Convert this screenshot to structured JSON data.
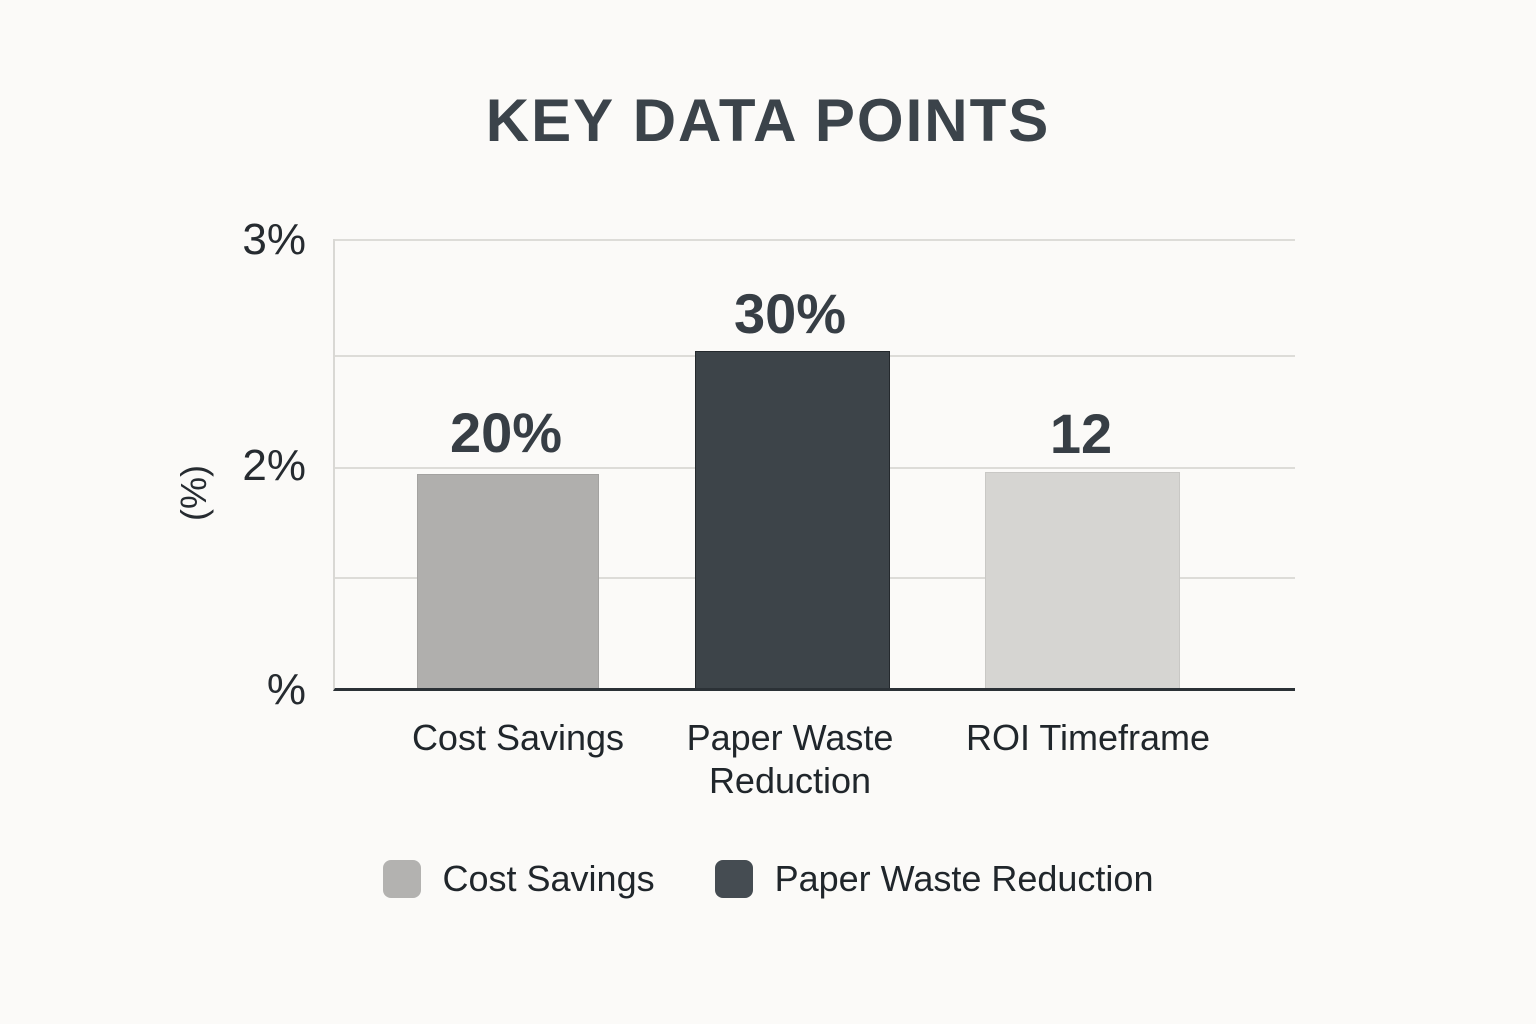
{
  "title": "KEY DATA POINTS",
  "colors": {
    "background": "#fbfaf8",
    "title_text": "#3b434a",
    "axis_line": "#2b3136",
    "gridline": "#dddcd8",
    "bar_cost_savings": "#b0afad",
    "bar_paper_waste": "#3d4449",
    "bar_roi": "#d6d5d2"
  },
  "chart_data": {
    "type": "bar",
    "title": "KEY DATA POINTS",
    "categories": [
      "Cost Savings",
      "Paper Waste Reduction",
      "ROI Timeframe"
    ],
    "values": [
      20,
      30,
      12
    ],
    "value_labels": [
      "20%",
      "30%",
      "12"
    ],
    "xlabel": "",
    "ylabel": "(%)",
    "ytick_labels": [
      "3%",
      "2%",
      "%"
    ],
    "grid": true,
    "legend_position": "bottom",
    "bar_colors": [
      "#b0afad",
      "#3d4449",
      "#d6d5d2"
    ],
    "legend": [
      {
        "label": "Cost Savings",
        "color": "#b3b2b0"
      },
      {
        "label": "Paper Waste Reduction",
        "color": "#454c52"
      }
    ]
  }
}
